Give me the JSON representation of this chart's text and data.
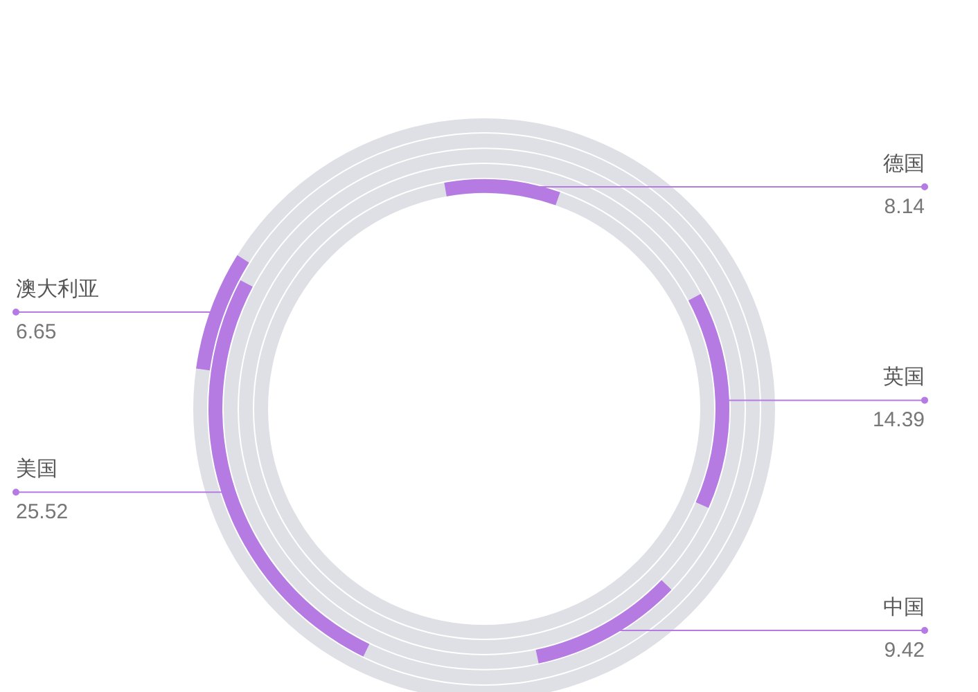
{
  "chart_data": {
    "type": "other",
    "categories": [
      "德国",
      "英国",
      "中国",
      "美国",
      "澳大利亚"
    ],
    "values": [
      8.14,
      14.39,
      9.42,
      25.52,
      6.65
    ],
    "colors": [
      "#b57be3",
      "#b57be3",
      "#b57be3",
      "#b57be3",
      "#b57be3"
    ],
    "data_labels": true
  }
}
